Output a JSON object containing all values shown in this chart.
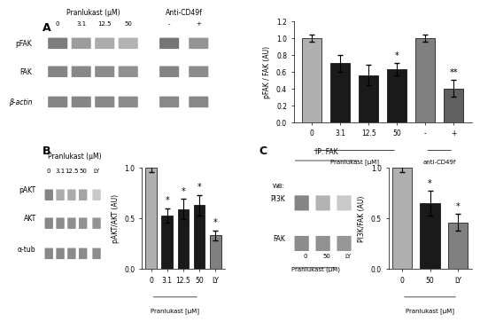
{
  "panel_A_bar": {
    "categories": [
      "0",
      "3.1",
      "12.5",
      "50",
      "-",
      "+"
    ],
    "values": [
      1.0,
      0.7,
      0.56,
      0.63,
      1.0,
      0.4
    ],
    "errors": [
      0.04,
      0.1,
      0.12,
      0.07,
      0.04,
      0.1
    ],
    "colors": [
      "#b0b0b0",
      "#1a1a1a",
      "#1a1a1a",
      "#1a1a1a",
      "#808080",
      "#606060"
    ],
    "ylabel": "pFAK / FAK (AU)",
    "ylim": [
      0.0,
      1.2
    ],
    "yticks": [
      0.0,
      0.2,
      0.4,
      0.6,
      0.8,
      1.0,
      1.2
    ],
    "group1_label": "Pranlukast [μM]",
    "group2_label": "anti-CD49f",
    "group1_xticks": [
      "0",
      "3.1",
      "12.5",
      "50"
    ],
    "group2_xticks": [
      "-",
      "+"
    ],
    "sig_labels": [
      "",
      "",
      "",
      "*",
      "",
      "**"
    ]
  },
  "panel_B_bar": {
    "categories": [
      "0",
      "3.1",
      "12.5",
      "50",
      "LY"
    ],
    "values": [
      1.0,
      0.53,
      0.59,
      0.63,
      0.33
    ],
    "errors": [
      0.04,
      0.07,
      0.1,
      0.1,
      0.05
    ],
    "colors": [
      "#b0b0b0",
      "#1a1a1a",
      "#1a1a1a",
      "#1a1a1a",
      "#808080"
    ],
    "ylabel": "pAKT/AKT (AU)",
    "ylim": [
      0.0,
      1.0
    ],
    "yticks": [
      0.0,
      0.5,
      1.0
    ],
    "group1_label": "Pranlukast [μM]",
    "sig_labels": [
      "",
      "*",
      "*",
      "*",
      "*"
    ]
  },
  "panel_C_bar": {
    "categories": [
      "0",
      "50",
      "LY"
    ],
    "values": [
      1.0,
      0.65,
      0.46
    ],
    "errors": [
      0.04,
      0.12,
      0.08
    ],
    "colors": [
      "#b0b0b0",
      "#1a1a1a",
      "#808080"
    ],
    "ylabel": "PI3K/FAK (AU)",
    "ylim": [
      0.0,
      1.0
    ],
    "yticks": [
      0.0,
      0.5,
      1.0
    ],
    "group1_label": "Pranlukast [μM]",
    "sig_labels": [
      "",
      "*",
      "*"
    ]
  },
  "wb_color": "#d0d0d0",
  "band_color": "#606060",
  "bg_color": "#ffffff"
}
